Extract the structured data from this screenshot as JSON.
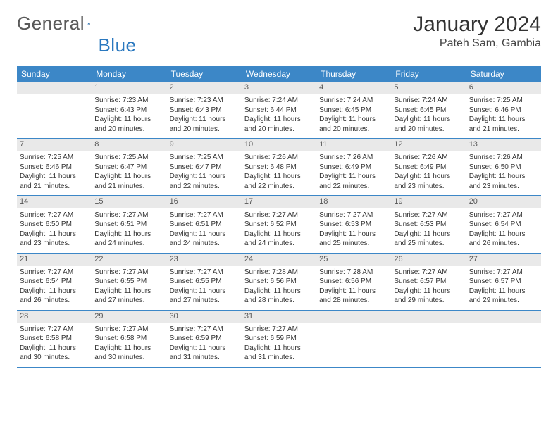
{
  "brand": {
    "word1": "General",
    "word2": "Blue"
  },
  "title": "January 2024",
  "location": "Pateh Sam, Gambia",
  "colors": {
    "header_bg": "#3c87c7",
    "header_text": "#ffffff",
    "daynum_bg": "#e9e9e9",
    "rule": "#3c87c7",
    "logo_gray": "#5a5a5a",
    "logo_blue": "#2a78bf"
  },
  "typography": {
    "title_fontsize": 30,
    "location_fontsize": 16,
    "weekday_fontsize": 12,
    "daynum_fontsize": 11,
    "body_fontsize": 10
  },
  "weekdays": [
    "Sunday",
    "Monday",
    "Tuesday",
    "Wednesday",
    "Thursday",
    "Friday",
    "Saturday"
  ],
  "weeks": [
    [
      {
        "n": "",
        "sunrise": "",
        "sunset": "",
        "daylight": ""
      },
      {
        "n": "1",
        "sunrise": "Sunrise: 7:23 AM",
        "sunset": "Sunset: 6:43 PM",
        "daylight": "Daylight: 11 hours and 20 minutes."
      },
      {
        "n": "2",
        "sunrise": "Sunrise: 7:23 AM",
        "sunset": "Sunset: 6:43 PM",
        "daylight": "Daylight: 11 hours and 20 minutes."
      },
      {
        "n": "3",
        "sunrise": "Sunrise: 7:24 AM",
        "sunset": "Sunset: 6:44 PM",
        "daylight": "Daylight: 11 hours and 20 minutes."
      },
      {
        "n": "4",
        "sunrise": "Sunrise: 7:24 AM",
        "sunset": "Sunset: 6:45 PM",
        "daylight": "Daylight: 11 hours and 20 minutes."
      },
      {
        "n": "5",
        "sunrise": "Sunrise: 7:24 AM",
        "sunset": "Sunset: 6:45 PM",
        "daylight": "Daylight: 11 hours and 20 minutes."
      },
      {
        "n": "6",
        "sunrise": "Sunrise: 7:25 AM",
        "sunset": "Sunset: 6:46 PM",
        "daylight": "Daylight: 11 hours and 21 minutes."
      }
    ],
    [
      {
        "n": "7",
        "sunrise": "Sunrise: 7:25 AM",
        "sunset": "Sunset: 6:46 PM",
        "daylight": "Daylight: 11 hours and 21 minutes."
      },
      {
        "n": "8",
        "sunrise": "Sunrise: 7:25 AM",
        "sunset": "Sunset: 6:47 PM",
        "daylight": "Daylight: 11 hours and 21 minutes."
      },
      {
        "n": "9",
        "sunrise": "Sunrise: 7:25 AM",
        "sunset": "Sunset: 6:47 PM",
        "daylight": "Daylight: 11 hours and 22 minutes."
      },
      {
        "n": "10",
        "sunrise": "Sunrise: 7:26 AM",
        "sunset": "Sunset: 6:48 PM",
        "daylight": "Daylight: 11 hours and 22 minutes."
      },
      {
        "n": "11",
        "sunrise": "Sunrise: 7:26 AM",
        "sunset": "Sunset: 6:49 PM",
        "daylight": "Daylight: 11 hours and 22 minutes."
      },
      {
        "n": "12",
        "sunrise": "Sunrise: 7:26 AM",
        "sunset": "Sunset: 6:49 PM",
        "daylight": "Daylight: 11 hours and 23 minutes."
      },
      {
        "n": "13",
        "sunrise": "Sunrise: 7:26 AM",
        "sunset": "Sunset: 6:50 PM",
        "daylight": "Daylight: 11 hours and 23 minutes."
      }
    ],
    [
      {
        "n": "14",
        "sunrise": "Sunrise: 7:27 AM",
        "sunset": "Sunset: 6:50 PM",
        "daylight": "Daylight: 11 hours and 23 minutes."
      },
      {
        "n": "15",
        "sunrise": "Sunrise: 7:27 AM",
        "sunset": "Sunset: 6:51 PM",
        "daylight": "Daylight: 11 hours and 24 minutes."
      },
      {
        "n": "16",
        "sunrise": "Sunrise: 7:27 AM",
        "sunset": "Sunset: 6:51 PM",
        "daylight": "Daylight: 11 hours and 24 minutes."
      },
      {
        "n": "17",
        "sunrise": "Sunrise: 7:27 AM",
        "sunset": "Sunset: 6:52 PM",
        "daylight": "Daylight: 11 hours and 24 minutes."
      },
      {
        "n": "18",
        "sunrise": "Sunrise: 7:27 AM",
        "sunset": "Sunset: 6:53 PM",
        "daylight": "Daylight: 11 hours and 25 minutes."
      },
      {
        "n": "19",
        "sunrise": "Sunrise: 7:27 AM",
        "sunset": "Sunset: 6:53 PM",
        "daylight": "Daylight: 11 hours and 25 minutes."
      },
      {
        "n": "20",
        "sunrise": "Sunrise: 7:27 AM",
        "sunset": "Sunset: 6:54 PM",
        "daylight": "Daylight: 11 hours and 26 minutes."
      }
    ],
    [
      {
        "n": "21",
        "sunrise": "Sunrise: 7:27 AM",
        "sunset": "Sunset: 6:54 PM",
        "daylight": "Daylight: 11 hours and 26 minutes."
      },
      {
        "n": "22",
        "sunrise": "Sunrise: 7:27 AM",
        "sunset": "Sunset: 6:55 PM",
        "daylight": "Daylight: 11 hours and 27 minutes."
      },
      {
        "n": "23",
        "sunrise": "Sunrise: 7:27 AM",
        "sunset": "Sunset: 6:55 PM",
        "daylight": "Daylight: 11 hours and 27 minutes."
      },
      {
        "n": "24",
        "sunrise": "Sunrise: 7:28 AM",
        "sunset": "Sunset: 6:56 PM",
        "daylight": "Daylight: 11 hours and 28 minutes."
      },
      {
        "n": "25",
        "sunrise": "Sunrise: 7:28 AM",
        "sunset": "Sunset: 6:56 PM",
        "daylight": "Daylight: 11 hours and 28 minutes."
      },
      {
        "n": "26",
        "sunrise": "Sunrise: 7:27 AM",
        "sunset": "Sunset: 6:57 PM",
        "daylight": "Daylight: 11 hours and 29 minutes."
      },
      {
        "n": "27",
        "sunrise": "Sunrise: 7:27 AM",
        "sunset": "Sunset: 6:57 PM",
        "daylight": "Daylight: 11 hours and 29 minutes."
      }
    ],
    [
      {
        "n": "28",
        "sunrise": "Sunrise: 7:27 AM",
        "sunset": "Sunset: 6:58 PM",
        "daylight": "Daylight: 11 hours and 30 minutes."
      },
      {
        "n": "29",
        "sunrise": "Sunrise: 7:27 AM",
        "sunset": "Sunset: 6:58 PM",
        "daylight": "Daylight: 11 hours and 30 minutes."
      },
      {
        "n": "30",
        "sunrise": "Sunrise: 7:27 AM",
        "sunset": "Sunset: 6:59 PM",
        "daylight": "Daylight: 11 hours and 31 minutes."
      },
      {
        "n": "31",
        "sunrise": "Sunrise: 7:27 AM",
        "sunset": "Sunset: 6:59 PM",
        "daylight": "Daylight: 11 hours and 31 minutes."
      },
      {
        "n": "",
        "sunrise": "",
        "sunset": "",
        "daylight": ""
      },
      {
        "n": "",
        "sunrise": "",
        "sunset": "",
        "daylight": ""
      },
      {
        "n": "",
        "sunrise": "",
        "sunset": "",
        "daylight": ""
      }
    ]
  ]
}
